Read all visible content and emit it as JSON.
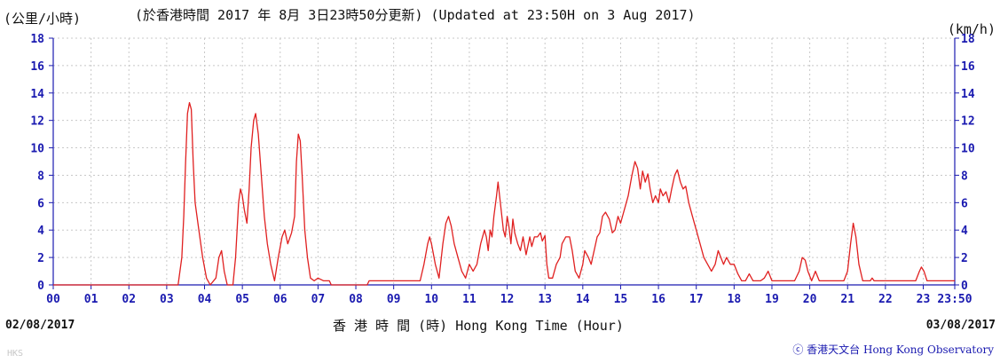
{
  "chart_data": {
    "type": "line",
    "title": "(於香港時間 2017 年 8月 3日23時50分更新) (Updated at 23:50H on 3 Aug 2017)",
    "ylabel_left": "(公里/小時)",
    "ylabel_right": "(km/h)",
    "xlabel": "香 港 時 間 (時)  Hong Kong Time (Hour)",
    "start_date": "02/08/2017",
    "end_date": "03/08/2017",
    "ylim": [
      0,
      18
    ],
    "yticks": [
      0,
      2,
      4,
      6,
      8,
      10,
      12,
      14,
      16,
      18
    ],
    "xlim": [
      0,
      23.833
    ],
    "xtick_labels": [
      "00",
      "01",
      "02",
      "03",
      "04",
      "05",
      "06",
      "07",
      "08",
      "09",
      "10",
      "11",
      "12",
      "13",
      "14",
      "15",
      "16",
      "17",
      "18",
      "19",
      "20",
      "21",
      "22",
      "23",
      "23:50"
    ],
    "grid": true,
    "series": [
      {
        "color": "#e02020",
        "points": [
          [
            0.0,
            0
          ],
          [
            3.3,
            0
          ],
          [
            3.4,
            2
          ],
          [
            3.45,
            5
          ],
          [
            3.5,
            9
          ],
          [
            3.55,
            12.5
          ],
          [
            3.6,
            13.3
          ],
          [
            3.65,
            12.8
          ],
          [
            3.7,
            9
          ],
          [
            3.75,
            6
          ],
          [
            3.85,
            4
          ],
          [
            3.95,
            2
          ],
          [
            4.05,
            0.5
          ],
          [
            4.15,
            0
          ],
          [
            4.3,
            0.5
          ],
          [
            4.38,
            2
          ],
          [
            4.45,
            2.5
          ],
          [
            4.52,
            1
          ],
          [
            4.6,
            0
          ],
          [
            4.75,
            0
          ],
          [
            4.82,
            2
          ],
          [
            4.9,
            6
          ],
          [
            4.95,
            7
          ],
          [
            5.0,
            6.5
          ],
          [
            5.05,
            5.5
          ],
          [
            5.12,
            4.5
          ],
          [
            5.18,
            7
          ],
          [
            5.23,
            10
          ],
          [
            5.3,
            12
          ],
          [
            5.35,
            12.5
          ],
          [
            5.42,
            11
          ],
          [
            5.5,
            8
          ],
          [
            5.58,
            5
          ],
          [
            5.66,
            3
          ],
          [
            5.75,
            1.5
          ],
          [
            5.85,
            0.3
          ],
          [
            5.95,
            2
          ],
          [
            6.05,
            3.5
          ],
          [
            6.12,
            4
          ],
          [
            6.2,
            3
          ],
          [
            6.3,
            3.8
          ],
          [
            6.38,
            5
          ],
          [
            6.43,
            9
          ],
          [
            6.48,
            11
          ],
          [
            6.53,
            10.5
          ],
          [
            6.58,
            8
          ],
          [
            6.65,
            4
          ],
          [
            6.72,
            2
          ],
          [
            6.8,
            0.5
          ],
          [
            6.9,
            0.3
          ],
          [
            7.0,
            0.5
          ],
          [
            7.15,
            0.3
          ],
          [
            7.3,
            0.3
          ],
          [
            7.35,
            0
          ],
          [
            8.3,
            0
          ],
          [
            8.35,
            0.3
          ],
          [
            9.7,
            0.3
          ],
          [
            9.8,
            1.5
          ],
          [
            9.9,
            3
          ],
          [
            9.95,
            3.5
          ],
          [
            10.0,
            3
          ],
          [
            10.1,
            1.5
          ],
          [
            10.2,
            0.5
          ],
          [
            10.3,
            3
          ],
          [
            10.38,
            4.5
          ],
          [
            10.45,
            5
          ],
          [
            10.52,
            4.3
          ],
          [
            10.6,
            3
          ],
          [
            10.7,
            2
          ],
          [
            10.8,
            1
          ],
          [
            10.9,
            0.5
          ],
          [
            11.0,
            1.5
          ],
          [
            11.1,
            1
          ],
          [
            11.2,
            1.5
          ],
          [
            11.3,
            3
          ],
          [
            11.4,
            4
          ],
          [
            11.45,
            3.5
          ],
          [
            11.5,
            2.5
          ],
          [
            11.55,
            4
          ],
          [
            11.6,
            3.5
          ],
          [
            11.65,
            5
          ],
          [
            11.72,
            6.5
          ],
          [
            11.76,
            7.5
          ],
          [
            11.82,
            6
          ],
          [
            11.9,
            4
          ],
          [
            11.95,
            3.5
          ],
          [
            12.0,
            5
          ],
          [
            12.05,
            4.2
          ],
          [
            12.1,
            3
          ],
          [
            12.15,
            4.8
          ],
          [
            12.2,
            3.8
          ],
          [
            12.28,
            3
          ],
          [
            12.35,
            2.5
          ],
          [
            12.42,
            3.5
          ],
          [
            12.5,
            2.2
          ],
          [
            12.6,
            3.5
          ],
          [
            12.65,
            2.8
          ],
          [
            12.72,
            3.5
          ],
          [
            12.8,
            3.5
          ],
          [
            12.88,
            3.8
          ],
          [
            12.93,
            3.2
          ],
          [
            13.0,
            3.6
          ],
          [
            13.05,
            1.5
          ],
          [
            13.1,
            0.5
          ],
          [
            13.2,
            0.5
          ],
          [
            13.3,
            1.5
          ],
          [
            13.4,
            2
          ],
          [
            13.45,
            3
          ],
          [
            13.55,
            3.5
          ],
          [
            13.65,
            3.5
          ],
          [
            13.72,
            2.5
          ],
          [
            13.8,
            1
          ],
          [
            13.9,
            0.5
          ],
          [
            14.0,
            1.5
          ],
          [
            14.05,
            2.5
          ],
          [
            14.15,
            2
          ],
          [
            14.22,
            1.5
          ],
          [
            14.3,
            2.5
          ],
          [
            14.38,
            3.5
          ],
          [
            14.45,
            3.8
          ],
          [
            14.52,
            5
          ],
          [
            14.6,
            5.3
          ],
          [
            14.7,
            4.8
          ],
          [
            14.78,
            3.8
          ],
          [
            14.85,
            4
          ],
          [
            14.93,
            5
          ],
          [
            15.0,
            4.5
          ],
          [
            15.1,
            5.5
          ],
          [
            15.2,
            6.5
          ],
          [
            15.3,
            8
          ],
          [
            15.38,
            9
          ],
          [
            15.45,
            8.5
          ],
          [
            15.52,
            7
          ],
          [
            15.58,
            8.3
          ],
          [
            15.65,
            7.5
          ],
          [
            15.72,
            8.1
          ],
          [
            15.78,
            7
          ],
          [
            15.85,
            6
          ],
          [
            15.92,
            6.5
          ],
          [
            16.0,
            6
          ],
          [
            16.05,
            7
          ],
          [
            16.12,
            6.5
          ],
          [
            16.2,
            6.8
          ],
          [
            16.28,
            6
          ],
          [
            16.35,
            7
          ],
          [
            16.43,
            8
          ],
          [
            16.5,
            8.4
          ],
          [
            16.58,
            7.5
          ],
          [
            16.65,
            7
          ],
          [
            16.72,
            7.2
          ],
          [
            16.8,
            6
          ],
          [
            16.9,
            5
          ],
          [
            17.0,
            4
          ],
          [
            17.1,
            3
          ],
          [
            17.2,
            2
          ],
          [
            17.3,
            1.5
          ],
          [
            17.4,
            1
          ],
          [
            17.5,
            1.5
          ],
          [
            17.58,
            2.5
          ],
          [
            17.65,
            2
          ],
          [
            17.72,
            1.5
          ],
          [
            17.8,
            2
          ],
          [
            17.9,
            1.5
          ],
          [
            18.0,
            1.5
          ],
          [
            18.1,
            0.8
          ],
          [
            18.2,
            0.3
          ],
          [
            18.3,
            0.3
          ],
          [
            18.4,
            0.8
          ],
          [
            18.5,
            0.3
          ],
          [
            18.6,
            0.3
          ],
          [
            18.7,
            0.3
          ],
          [
            18.8,
            0.5
          ],
          [
            18.9,
            1
          ],
          [
            19.0,
            0.3
          ],
          [
            19.6,
            0.3
          ],
          [
            19.72,
            1
          ],
          [
            19.8,
            2
          ],
          [
            19.88,
            1.8
          ],
          [
            19.95,
            1
          ],
          [
            20.05,
            0.3
          ],
          [
            20.15,
            1
          ],
          [
            20.25,
            0.3
          ],
          [
            20.9,
            0.3
          ],
          [
            21.0,
            1
          ],
          [
            21.08,
            3
          ],
          [
            21.15,
            4.5
          ],
          [
            21.22,
            3.5
          ],
          [
            21.3,
            1.5
          ],
          [
            21.4,
            0.3
          ],
          [
            21.6,
            0.3
          ],
          [
            21.65,
            0.5
          ],
          [
            21.7,
            0.3
          ],
          [
            22.8,
            0.3
          ],
          [
            22.9,
            1
          ],
          [
            22.95,
            1.3
          ],
          [
            23.02,
            1
          ],
          [
            23.1,
            0.3
          ],
          [
            23.833,
            0.3
          ]
        ]
      }
    ]
  },
  "copyright": "ⓒ 香港天文台 Hong Kong Observatory",
  "watermark": "HKS"
}
